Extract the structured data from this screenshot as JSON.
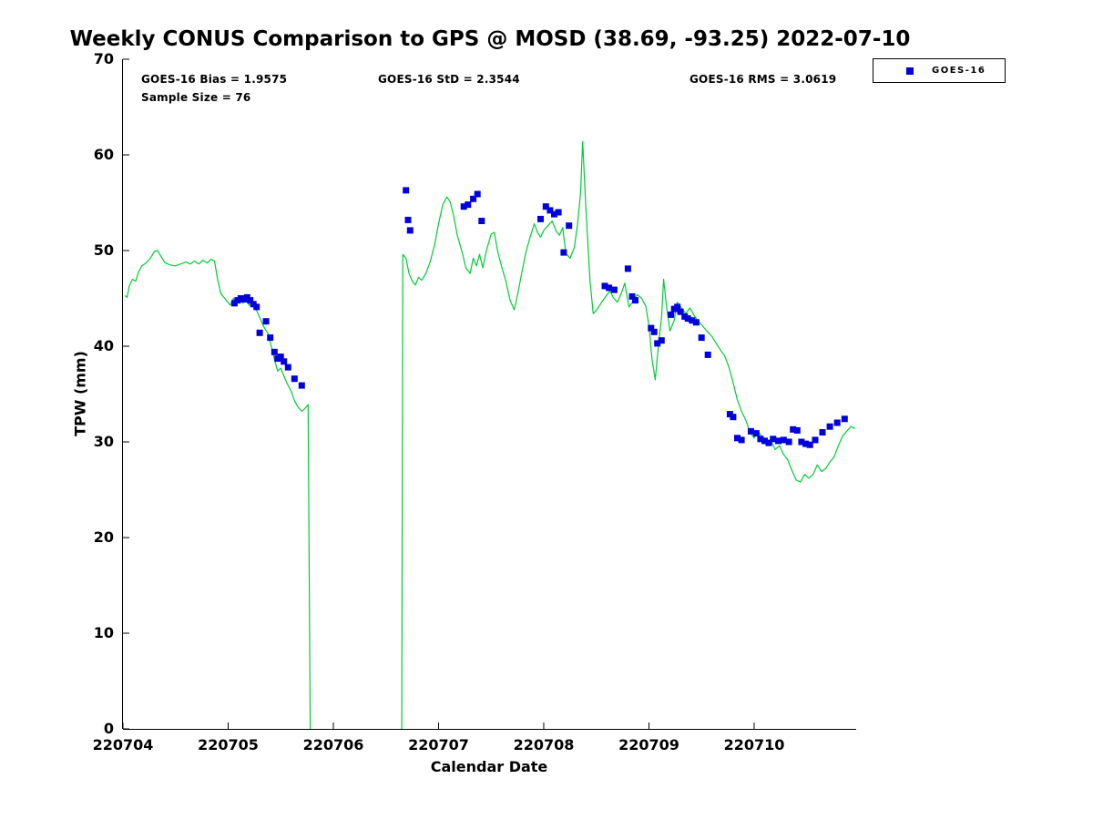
{
  "title": "Weekly CONUS Comparison to GPS @ MOSD (38.69, -93.25) 2022-07-10",
  "stats": {
    "bias": "GOES-16 Bias = 1.9575",
    "std": "GOES-16 StD = 2.3544",
    "rms": "GOES-16 RMS = 3.0619",
    "sample_size": "Sample Size = 76"
  },
  "legend": {
    "position": "top-right",
    "items": [
      {
        "label": "GOES-16",
        "marker": "filled-square",
        "color": "#0000dd"
      }
    ]
  },
  "chart_data": {
    "type": "line",
    "title": "Weekly CONUS Comparison to GPS @ MOSD (38.69, -93.25) 2022-07-10",
    "xlabel": "Calendar Date",
    "ylabel": "TPW (mm)",
    "grid": false,
    "legend_position": "top-right",
    "ylim": [
      0,
      70
    ],
    "y_ticks": [
      0,
      10,
      20,
      30,
      40,
      50,
      60,
      70
    ],
    "x_ticks": [
      "220704",
      "220705",
      "220706",
      "220707",
      "220708",
      "220709",
      "220710"
    ],
    "x_encoding": "days since 220704",
    "xlim_days": [
      0,
      6.97
    ],
    "series": [
      {
        "name": "GPS",
        "type": "line",
        "color": "#00cc33",
        "segments": [
          [
            [
              0.02,
              45.3
            ],
            [
              0.04,
              45.1
            ],
            [
              0.06,
              46.3
            ],
            [
              0.09,
              47.0
            ],
            [
              0.12,
              46.8
            ],
            [
              0.15,
              47.8
            ],
            [
              0.18,
              48.4
            ],
            [
              0.22,
              48.7
            ],
            [
              0.26,
              49.2
            ],
            [
              0.3,
              49.9
            ],
            [
              0.33,
              50.0
            ],
            [
              0.36,
              49.4
            ],
            [
              0.4,
              48.7
            ],
            [
              0.45,
              48.5
            ],
            [
              0.5,
              48.4
            ],
            [
              0.55,
              48.6
            ],
            [
              0.6,
              48.8
            ],
            [
              0.64,
              48.6
            ],
            [
              0.68,
              48.9
            ],
            [
              0.72,
              48.6
            ],
            [
              0.76,
              49.0
            ],
            [
              0.8,
              48.7
            ],
            [
              0.84,
              49.1
            ],
            [
              0.87,
              48.9
            ],
            [
              0.9,
              47.0
            ],
            [
              0.93,
              45.5
            ],
            [
              0.96,
              45.1
            ],
            [
              0.99,
              44.7
            ],
            [
              1.02,
              44.3
            ],
            [
              1.05,
              45.0
            ],
            [
              1.08,
              44.4
            ],
            [
              1.11,
              44.9
            ],
            [
              1.14,
              44.5
            ],
            [
              1.17,
              44.8
            ],
            [
              1.2,
              44.3
            ],
            [
              1.23,
              44.7
            ],
            [
              1.26,
              44.0
            ],
            [
              1.3,
              43.0
            ],
            [
              1.34,
              42.0
            ],
            [
              1.38,
              41.3
            ],
            [
              1.41,
              40.0
            ],
            [
              1.44,
              38.6
            ],
            [
              1.47,
              37.4
            ],
            [
              1.5,
              37.7
            ],
            [
              1.53,
              36.9
            ],
            [
              1.56,
              36.1
            ],
            [
              1.6,
              35.3
            ],
            [
              1.63,
              34.3
            ],
            [
              1.66,
              33.7
            ],
            [
              1.7,
              33.2
            ],
            [
              1.73,
              33.5
            ],
            [
              1.76,
              33.9
            ],
            [
              1.78,
              0
            ]
          ],
          [
            [
              2.65,
              0
            ],
            [
              2.66,
              49.6
            ],
            [
              2.69,
              49.2
            ],
            [
              2.72,
              47.6
            ],
            [
              2.75,
              46.8
            ],
            [
              2.78,
              46.4
            ],
            [
              2.81,
              47.2
            ],
            [
              2.84,
              46.9
            ],
            [
              2.88,
              47.6
            ],
            [
              2.92,
              48.8
            ],
            [
              2.96,
              50.5
            ],
            [
              3.0,
              52.8
            ],
            [
              3.04,
              54.8
            ],
            [
              3.08,
              55.6
            ],
            [
              3.11,
              55.1
            ],
            [
              3.14,
              53.8
            ],
            [
              3.18,
              51.5
            ],
            [
              3.22,
              50.0
            ],
            [
              3.26,
              48.2
            ],
            [
              3.3,
              47.6
            ],
            [
              3.33,
              49.2
            ],
            [
              3.36,
              48.4
            ],
            [
              3.39,
              49.6
            ],
            [
              3.42,
              48.2
            ],
            [
              3.46,
              50.2
            ],
            [
              3.5,
              51.7
            ],
            [
              3.53,
              51.9
            ],
            [
              3.56,
              50.0
            ],
            [
              3.6,
              48.3
            ],
            [
              3.64,
              46.8
            ],
            [
              3.68,
              44.8
            ],
            [
              3.72,
              43.8
            ],
            [
              3.75,
              45.3
            ],
            [
              3.79,
              47.6
            ],
            [
              3.83,
              49.8
            ],
            [
              3.87,
              51.4
            ],
            [
              3.91,
              52.8
            ],
            [
              3.94,
              51.9
            ],
            [
              3.97,
              51.4
            ],
            [
              4.0,
              52.1
            ],
            [
              4.04,
              52.6
            ],
            [
              4.08,
              53.1
            ],
            [
              4.12,
              52.0
            ],
            [
              4.15,
              51.6
            ],
            [
              4.18,
              52.4
            ],
            [
              4.21,
              49.7
            ],
            [
              4.25,
              49.2
            ],
            [
              4.29,
              50.3
            ],
            [
              4.32,
              52.6
            ],
            [
              4.35,
              56.0
            ],
            [
              4.37,
              61.4
            ],
            [
              4.4,
              54.5
            ],
            [
              4.44,
              46.8
            ],
            [
              4.47,
              43.4
            ],
            [
              4.51,
              43.9
            ],
            [
              4.55,
              44.6
            ],
            [
              4.59,
              45.2
            ],
            [
              4.63,
              45.8
            ],
            [
              4.66,
              45.1
            ],
            [
              4.7,
              44.6
            ],
            [
              4.74,
              45.6
            ],
            [
              4.77,
              46.6
            ],
            [
              4.81,
              44.1
            ],
            [
              4.85,
              44.7
            ],
            [
              4.89,
              45.4
            ],
            [
              4.93,
              45.0
            ],
            [
              4.97,
              44.2
            ],
            [
              5.0,
              42.1
            ],
            [
              5.03,
              38.6
            ],
            [
              5.06,
              36.5
            ],
            [
              5.09,
              40.1
            ],
            [
              5.12,
              43.0
            ],
            [
              5.14,
              47.0
            ],
            [
              5.17,
              43.9
            ],
            [
              5.2,
              41.6
            ],
            [
              5.24,
              42.7
            ],
            [
              5.27,
              44.6
            ],
            [
              5.31,
              44.0
            ],
            [
              5.35,
              43.4
            ],
            [
              5.39,
              44.0
            ],
            [
              5.43,
              43.2
            ],
            [
              5.47,
              42.6
            ],
            [
              5.51,
              42.1
            ],
            [
              5.55,
              41.6
            ],
            [
              5.6,
              41.0
            ],
            [
              5.64,
              40.3
            ],
            [
              5.68,
              39.6
            ],
            [
              5.72,
              39.0
            ],
            [
              5.76,
              37.8
            ],
            [
              5.8,
              36.2
            ],
            [
              5.84,
              34.4
            ],
            [
              5.88,
              33.2
            ],
            [
              5.92,
              32.3
            ],
            [
              5.96,
              31.0
            ],
            [
              6.0,
              30.4
            ],
            [
              6.04,
              31.1
            ],
            [
              6.08,
              30.4
            ],
            [
              6.12,
              29.6
            ],
            [
              6.16,
              30.1
            ],
            [
              6.2,
              29.2
            ],
            [
              6.24,
              29.6
            ],
            [
              6.28,
              28.7
            ],
            [
              6.32,
              28.1
            ],
            [
              6.36,
              27.0
            ],
            [
              6.4,
              26.0
            ],
            [
              6.44,
              25.8
            ],
            [
              6.48,
              26.6
            ],
            [
              6.52,
              26.2
            ],
            [
              6.56,
              26.6
            ],
            [
              6.6,
              27.6
            ],
            [
              6.64,
              26.9
            ],
            [
              6.68,
              27.2
            ],
            [
              6.72,
              27.9
            ],
            [
              6.76,
              28.4
            ],
            [
              6.8,
              29.6
            ],
            [
              6.84,
              30.6
            ],
            [
              6.88,
              31.1
            ],
            [
              6.92,
              31.6
            ],
            [
              6.96,
              31.4
            ]
          ]
        ]
      },
      {
        "name": "GOES-16",
        "type": "scatter",
        "marker": "filled-square",
        "color": "#0000dd",
        "points": [
          [
            1.06,
            44.5
          ],
          [
            1.09,
            44.8
          ],
          [
            1.12,
            45.0
          ],
          [
            1.15,
            44.9
          ],
          [
            1.18,
            45.1
          ],
          [
            1.21,
            44.8
          ],
          [
            1.24,
            44.4
          ],
          [
            1.27,
            44.1
          ],
          [
            1.3,
            41.4
          ],
          [
            1.36,
            42.6
          ],
          [
            1.4,
            40.9
          ],
          [
            1.44,
            39.4
          ],
          [
            1.47,
            38.7
          ],
          [
            1.5,
            38.9
          ],
          [
            1.53,
            38.4
          ],
          [
            1.57,
            37.8
          ],
          [
            1.63,
            36.6
          ],
          [
            1.7,
            35.9
          ],
          [
            2.69,
            56.3
          ],
          [
            2.71,
            53.2
          ],
          [
            2.73,
            52.1
          ],
          [
            3.24,
            54.6
          ],
          [
            3.28,
            54.8
          ],
          [
            3.33,
            55.4
          ],
          [
            3.37,
            55.9
          ],
          [
            3.41,
            53.1
          ],
          [
            3.97,
            53.3
          ],
          [
            4.02,
            54.6
          ],
          [
            4.06,
            54.2
          ],
          [
            4.1,
            53.8
          ],
          [
            4.14,
            54.0
          ],
          [
            4.19,
            49.8
          ],
          [
            4.24,
            52.6
          ],
          [
            4.58,
            46.3
          ],
          [
            4.62,
            46.1
          ],
          [
            4.67,
            45.9
          ],
          [
            4.8,
            48.1
          ],
          [
            4.84,
            45.2
          ],
          [
            4.87,
            44.8
          ],
          [
            5.02,
            41.9
          ],
          [
            5.05,
            41.5
          ],
          [
            5.08,
            40.3
          ],
          [
            5.12,
            40.6
          ],
          [
            5.21,
            43.3
          ],
          [
            5.24,
            43.9
          ],
          [
            5.27,
            44.1
          ],
          [
            5.3,
            43.6
          ],
          [
            5.34,
            43.1
          ],
          [
            5.37,
            42.9
          ],
          [
            5.41,
            42.7
          ],
          [
            5.45,
            42.5
          ],
          [
            5.5,
            40.9
          ],
          [
            5.56,
            39.1
          ],
          [
            5.77,
            32.9
          ],
          [
            5.8,
            32.6
          ],
          [
            5.84,
            30.4
          ],
          [
            5.88,
            30.2
          ],
          [
            5.97,
            31.1
          ],
          [
            6.02,
            30.9
          ],
          [
            6.06,
            30.3
          ],
          [
            6.1,
            30.1
          ],
          [
            6.14,
            29.9
          ],
          [
            6.18,
            30.3
          ],
          [
            6.23,
            30.1
          ],
          [
            6.28,
            30.2
          ],
          [
            6.33,
            30.0
          ],
          [
            6.37,
            31.3
          ],
          [
            6.41,
            31.2
          ],
          [
            6.45,
            30.0
          ],
          [
            6.49,
            29.8
          ],
          [
            6.53,
            29.7
          ],
          [
            6.58,
            30.2
          ],
          [
            6.65,
            31.0
          ],
          [
            6.72,
            31.6
          ],
          [
            6.79,
            32.0
          ],
          [
            6.86,
            32.4
          ]
        ]
      }
    ]
  }
}
